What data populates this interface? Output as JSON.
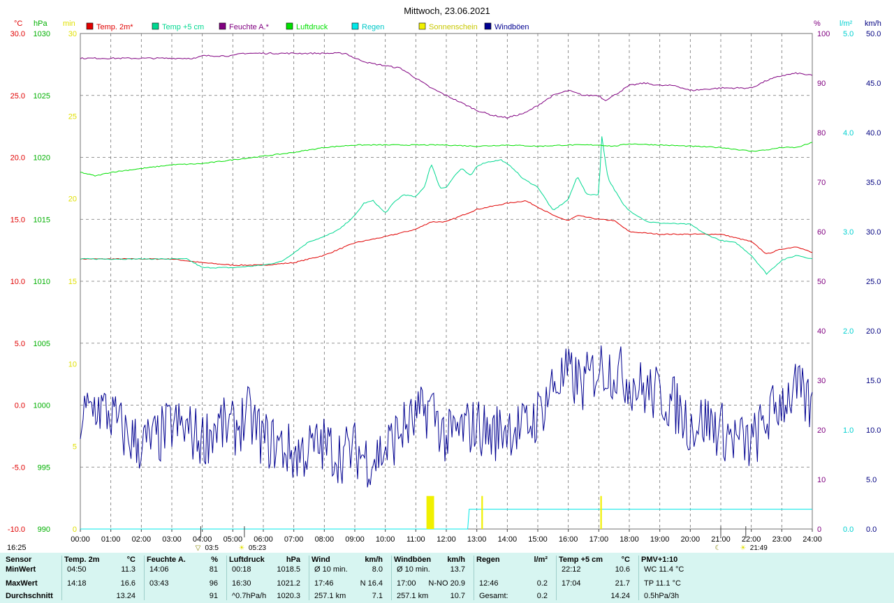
{
  "colors": {
    "temp2m": "#e00000",
    "temp5cm": "#00d890",
    "feuchte": "#800080",
    "luftdruck": "#00e000",
    "regen": "#00e8e8",
    "sonne": "#f0f000",
    "windboeen": "#000090",
    "grid": "#707070",
    "axis_celsius": "#e00000",
    "axis_hpa": "#00b000",
    "axis_min": "#e0e000",
    "axis_percent": "#800080",
    "axis_rain": "#00d0d0",
    "axis_kmh": "#000080",
    "stats_bg": "#d7f5f1"
  },
  "chart_data": {
    "type": "line",
    "title": "Mittwoch, 23.06.2021",
    "x_unit": "hour of day",
    "x_ticks": [
      "00:00",
      "01:00",
      "02:00",
      "03:00",
      "04:00",
      "05:00",
      "06:00",
      "07:00",
      "08:00",
      "09:00",
      "10:00",
      "11:00",
      "12:00",
      "13:00",
      "14:00",
      "15:00",
      "16:00",
      "17:00",
      "18:00",
      "19:00",
      "20:00",
      "21:00",
      "22:00",
      "23:00",
      "24:00"
    ],
    "axes": {
      "celsius": {
        "unit": "°C",
        "range": [
          -10,
          30
        ],
        "ticks": [
          "-10.0",
          "-5.0",
          "0.0",
          "5.0",
          "10.0",
          "15.0",
          "20.0",
          "25.0",
          "30.0"
        ]
      },
      "hpa": {
        "unit": "hPa",
        "range": [
          990,
          1030
        ],
        "ticks": [
          "990",
          "995",
          "1000",
          "1005",
          "1010",
          "1015",
          "1020",
          "1025",
          "1030"
        ]
      },
      "sun_min": {
        "unit": "min",
        "range": [
          0,
          30
        ],
        "ticks": [
          "0",
          "5",
          "10",
          "15",
          "20",
          "25",
          "30"
        ]
      },
      "percent": {
        "unit": "%",
        "range": [
          0,
          100
        ],
        "ticks": [
          "0",
          "10",
          "20",
          "30",
          "40",
          "50",
          "60",
          "70",
          "80",
          "90",
          "100"
        ]
      },
      "rain": {
        "unit": "l/m²",
        "range": [
          0,
          5
        ],
        "ticks": [
          "0.0",
          "1.0",
          "2.0",
          "3.0",
          "4.0",
          "5.0"
        ]
      },
      "kmh": {
        "unit": "km/h",
        "range": [
          0,
          50
        ],
        "ticks": [
          "0.0",
          "5.0",
          "10.0",
          "15.0",
          "20.0",
          "25.0",
          "30.0",
          "35.0",
          "40.0",
          "45.0",
          "50.0"
        ]
      }
    },
    "legend": [
      "Temp. 2m*",
      "Temp +5 cm",
      "Feuchte A.*",
      "Luftdruck",
      "Regen",
      "Sonnenschein",
      "Windböen"
    ],
    "grid": true,
    "legend_position": "top",
    "series": [
      {
        "name": "Temp. 2m*",
        "axis": "celsius",
        "x": [
          0,
          3,
          4,
          5,
          6,
          7,
          8,
          9,
          10,
          11,
          11.5,
          12,
          13,
          14,
          14.6,
          15,
          15.6,
          16,
          16.3,
          17,
          17.5,
          18,
          19,
          20,
          21,
          22,
          22.5,
          23,
          23.5,
          24
        ],
        "y": [
          11.8,
          11.8,
          11.5,
          11.3,
          11.3,
          11.5,
          12.1,
          13.1,
          13.6,
          14.2,
          14.8,
          14.8,
          15.8,
          16.3,
          16.5,
          16.0,
          15.2,
          14.9,
          15.3,
          15.0,
          14.9,
          14.0,
          13.8,
          13.8,
          13.8,
          13.2,
          12.2,
          12.6,
          12.8,
          12.3
        ]
      },
      {
        "name": "Temp +5 cm",
        "axis": "celsius",
        "x": [
          0,
          3.5,
          4,
          5,
          6,
          6.6,
          7,
          7.5,
          8,
          8.5,
          9,
          9.3,
          9.6,
          10,
          10.3,
          10.6,
          11,
          11.3,
          11.5,
          11.8,
          12,
          12.3,
          12.5,
          12.8,
          13,
          13.3,
          13.8,
          14.2,
          14.5,
          15,
          15.5,
          16,
          16.3,
          16.6,
          17,
          17.1,
          17.3,
          17.8,
          18,
          18.6,
          19,
          20,
          20.5,
          21,
          21.5,
          22,
          22.5,
          23,
          23.5,
          24
        ],
        "y": [
          11.8,
          11.8,
          11.1,
          11.1,
          11.3,
          11.6,
          12.3,
          13.2,
          13.6,
          14.2,
          15.3,
          16.3,
          16.5,
          15.5,
          16.4,
          17.0,
          16.8,
          17.7,
          19.5,
          17.5,
          17.6,
          18.6,
          19.1,
          18.5,
          19.3,
          19.6,
          19.8,
          19.1,
          18.3,
          17.6,
          15.7,
          16.6,
          18.5,
          17.0,
          17.0,
          21.7,
          18.3,
          16.2,
          15.7,
          14.8,
          14.7,
          14.6,
          13.8,
          13.3,
          13.1,
          12.1,
          10.6,
          11.7,
          12.1,
          11.8
        ]
      },
      {
        "name": "Feuchte A.*",
        "axis": "percent",
        "x": [
          0,
          3.8,
          4,
          5,
          5.3,
          6,
          7,
          8,
          8.7,
          9,
          9.5,
          10,
          10.5,
          11,
          11.5,
          12,
          12.5,
          13,
          13.5,
          14,
          14.3,
          14.6,
          15,
          15.5,
          16,
          16.5,
          17,
          17.2,
          17.5,
          18,
          18.5,
          19,
          19.5,
          20,
          21,
          21.5,
          22,
          22.5,
          23,
          23.5,
          24
        ],
        "y": [
          95,
          95,
          95.5,
          95.5,
          96,
          96,
          96,
          96,
          96,
          95,
          94,
          93.5,
          93,
          91,
          89,
          87.5,
          86,
          84.5,
          83.5,
          83,
          83.5,
          84,
          85.5,
          87.5,
          88.5,
          87.5,
          87.5,
          86.5,
          87.5,
          89.5,
          90,
          89.5,
          89.5,
          88.5,
          89,
          89,
          89,
          90.5,
          91.5,
          92,
          91.5
        ]
      },
      {
        "name": "Luftdruck",
        "axis": "hpa",
        "x": [
          0,
          0.5,
          1,
          2,
          3,
          4,
          5,
          6,
          7,
          8,
          9,
          10,
          11,
          12,
          13,
          14,
          15,
          16,
          17,
          17.5,
          18,
          19,
          20,
          21,
          22,
          22.5,
          23,
          23.5,
          24
        ],
        "y": [
          1018.8,
          1018.5,
          1018.8,
          1019.1,
          1019.4,
          1019.5,
          1019.8,
          1020.1,
          1020.4,
          1020.8,
          1021.0,
          1021.0,
          1021.0,
          1021.0,
          1020.9,
          1021.0,
          1020.9,
          1021.0,
          1021.0,
          1020.9,
          1021.1,
          1021.0,
          1020.9,
          1020.8,
          1020.5,
          1020.6,
          1020.8,
          1020.8,
          1021.2
        ]
      },
      {
        "name": "Regen",
        "axis": "rain",
        "type": "step",
        "x": [
          0,
          12.7,
          12.75,
          24
        ],
        "y": [
          0,
          0,
          0.2,
          0.2
        ]
      },
      {
        "name": "Sonnenschein",
        "axis": "sun_min",
        "type": "bar",
        "bars": [
          {
            "x": 11.35,
            "w": 0.25,
            "v": 2
          },
          {
            "x": 13.15,
            "w": 0.05,
            "v": 2
          },
          {
            "x": 17.05,
            "w": 0.05,
            "v": 2
          }
        ]
      },
      {
        "name": "Windböen",
        "axis": "percent",
        "type": "noisy",
        "x": [
          0,
          0.5,
          1,
          1.5,
          2,
          2.5,
          3,
          3.5,
          4,
          4.5,
          5,
          5.5,
          6,
          6.5,
          7,
          7.5,
          8,
          8.5,
          9,
          9.5,
          10,
          10.5,
          11,
          11.5,
          12,
          12.5,
          13,
          13.5,
          14,
          14.5,
          15,
          15.5,
          16,
          16.5,
          17,
          17.5,
          18,
          18.5,
          19,
          19.5,
          20,
          20.5,
          21,
          21.5,
          22,
          22.5,
          23,
          23.5,
          24
        ],
        "y": [
          22,
          25,
          23,
          19,
          17,
          18,
          21,
          20,
          18,
          21,
          20,
          23,
          18,
          17,
          15,
          16,
          17,
          15,
          16,
          14,
          16,
          20,
          22,
          25,
          18,
          20,
          21,
          19,
          21,
          20,
          23,
          29,
          31,
          29,
          33,
          32,
          30,
          28,
          27,
          25,
          21,
          22,
          20,
          18,
          17,
          22,
          26,
          28,
          24
        ],
        "amplitude": 6
      }
    ],
    "markers": [
      {
        "x": 3.95,
        "label": "03:5",
        "symbol": "▽",
        "color": "#808000"
      },
      {
        "x": 5.38,
        "label": "05:23",
        "symbol": "☀",
        "color": "#e0e000"
      },
      {
        "x": 21.0,
        "label": "",
        "symbol": "☾",
        "color": "#808000"
      },
      {
        "x": 21.82,
        "label": "21:49",
        "symbol": "☀",
        "color": "#e0e000"
      }
    ],
    "corner_label": "16:25"
  },
  "stats": {
    "columns": [
      {
        "id": "sensor",
        "header": "Sensor",
        "unit": "",
        "rows": [
          "MinWert",
          "MaxWert",
          "Durchschnitt"
        ]
      },
      {
        "id": "temp2m",
        "header": "Temp. 2m",
        "unit": "°C",
        "rows": [
          {
            "time": "04:50",
            "value": "11.3"
          },
          {
            "time": "14:18",
            "value": "16.6"
          },
          {
            "time": "",
            "value": "13.24"
          }
        ]
      },
      {
        "id": "feuchte",
        "header": "Feuchte A.",
        "unit": "%",
        "rows": [
          {
            "time": "14:06",
            "value": "81"
          },
          {
            "time": "03:43",
            "value": "96"
          },
          {
            "time": "",
            "value": "91"
          }
        ]
      },
      {
        "id": "luftdruck",
        "header": "Luftdruck",
        "unit": "hPa",
        "rows": [
          {
            "time": "00:18",
            "value": "1018.5"
          },
          {
            "time": "16:30",
            "value": "1021.2"
          },
          {
            "time": "^0.7hPa/h",
            "value": "1020.3"
          }
        ]
      },
      {
        "id": "wind",
        "header": "Wind",
        "unit": "km/h",
        "rows": [
          {
            "time": "Ø 10 min.",
            "value": "8.0"
          },
          {
            "time": "17:46",
            "value": "N 16.4"
          },
          {
            "time": "257.1 km",
            "value": "7.1"
          }
        ]
      },
      {
        "id": "windboeen",
        "header": "Windböen",
        "unit": "km/h",
        "rows": [
          {
            "time": "Ø 10 min.",
            "value": "13.7"
          },
          {
            "time": "17:00",
            "value": "N-NO 20.9"
          },
          {
            "time": "257.1 km",
            "value": "10.7"
          }
        ]
      },
      {
        "id": "regen",
        "header": "Regen",
        "unit": "l/m²",
        "rows": [
          {
            "time": "",
            "value": ""
          },
          {
            "time": "12:46",
            "value": "0.2"
          },
          {
            "time": "Gesamt:",
            "value": "0.2"
          }
        ]
      },
      {
        "id": "temp5cm",
        "header": "Temp +5 cm",
        "unit": "°C",
        "rows": [
          {
            "time": "22:12",
            "value": "10.6"
          },
          {
            "time": "17:04",
            "value": "21.7"
          },
          {
            "time": "",
            "value": "14.24"
          }
        ]
      },
      {
        "id": "pmv",
        "header": "PMV+1:10",
        "unit": "",
        "rows": [
          {
            "time": "WC 11.4 °C",
            "value": ""
          },
          {
            "time": "TP 11.1 °C",
            "value": ""
          },
          {
            "time": "0.5hPa/3h",
            "value": ""
          }
        ]
      }
    ]
  }
}
